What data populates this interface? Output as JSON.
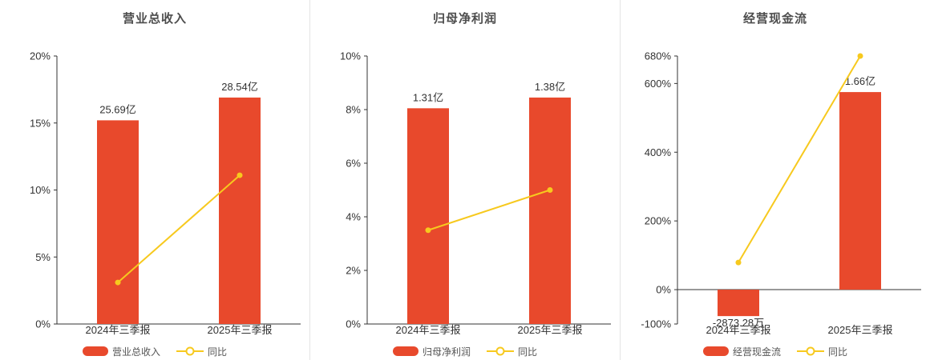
{
  "colors": {
    "bar": "#e8492c",
    "line": "#f7c91e",
    "axis": "#333333",
    "title": "#4d4d4d",
    "divider": "#e4e4e4"
  },
  "chart_data": [
    {
      "type": "bar",
      "title": "营业总收入",
      "categories": [
        "2024年三季报",
        "2025年三季报"
      ],
      "bars": {
        "name": "营业总收入",
        "value_labels": [
          "25.69亿",
          "28.54亿"
        ],
        "axis_values": [
          15.2,
          16.9
        ]
      },
      "line": {
        "name": "同比",
        "values": [
          3.1,
          11.1
        ]
      },
      "y_axis": {
        "min": 0,
        "max": 20,
        "ticks": [
          0,
          5,
          10,
          15,
          20
        ],
        "tick_suffix": "%"
      },
      "legend": [
        "营业总收入",
        "同比"
      ],
      "legend_position": "bottom",
      "grid": false
    },
    {
      "type": "bar",
      "title": "归母净利润",
      "categories": [
        "2024年三季报",
        "2025年三季报"
      ],
      "bars": {
        "name": "归母净利润",
        "value_labels": [
          "1.31亿",
          "1.38亿"
        ],
        "axis_values": [
          8.05,
          8.45
        ]
      },
      "line": {
        "name": "同比",
        "values": [
          3.5,
          5.0
        ]
      },
      "y_axis": {
        "min": 0,
        "max": 10,
        "ticks": [
          0,
          2,
          4,
          6,
          8,
          10
        ],
        "tick_suffix": "%"
      },
      "legend": [
        "归母净利润",
        "同比"
      ],
      "legend_position": "bottom",
      "grid": false
    },
    {
      "type": "bar",
      "title": "经营现金流",
      "categories": [
        "2024年三季报",
        "2025年三季报"
      ],
      "bars": {
        "name": "经营现金流",
        "value_labels": [
          "-2873.28万",
          "1.66亿"
        ],
        "axis_values": [
          -77,
          575
        ]
      },
      "line": {
        "name": "同比",
        "values": [
          79,
          680
        ]
      },
      "y_axis": {
        "min": -100,
        "max": 680,
        "ticks": [
          -100,
          0,
          200,
          400,
          600,
          680
        ],
        "tick_suffix": "%"
      },
      "legend": [
        "经营现金流",
        "同比"
      ],
      "legend_position": "bottom",
      "grid": false
    }
  ]
}
